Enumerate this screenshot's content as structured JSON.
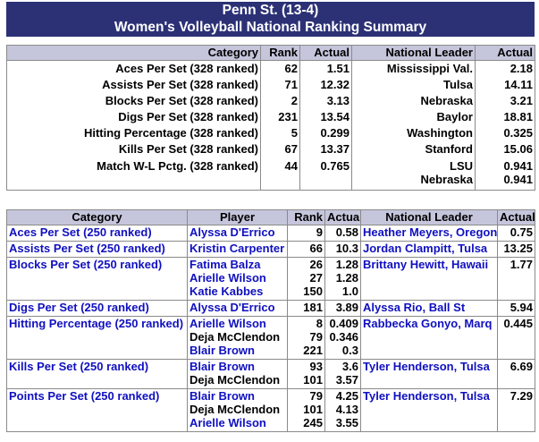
{
  "header": {
    "line1": "Penn St. (13-4)",
    "line2": "Women's Volleyball National Ranking Summary"
  },
  "team_table": {
    "columns": [
      "Category",
      "Rank",
      "Actual",
      "National Leader",
      "Actual"
    ],
    "rows": [
      {
        "category": "Aces Per Set (328 ranked)",
        "rank": "62",
        "actual": "1.51",
        "leaders": [
          "Mississippi Val."
        ],
        "leader_actuals": [
          "2.18"
        ]
      },
      {
        "category": "Assists Per Set (328 ranked)",
        "rank": "71",
        "actual": "12.32",
        "leaders": [
          "Tulsa"
        ],
        "leader_actuals": [
          "14.11"
        ]
      },
      {
        "category": "Blocks Per Set (328 ranked)",
        "rank": "2",
        "actual": "3.13",
        "leaders": [
          "Nebraska"
        ],
        "leader_actuals": [
          "3.21"
        ]
      },
      {
        "category": "Digs Per Set (328 ranked)",
        "rank": "231",
        "actual": "13.54",
        "leaders": [
          "Baylor"
        ],
        "leader_actuals": [
          "18.81"
        ]
      },
      {
        "category": "Hitting Percentage (328 ranked)",
        "rank": "5",
        "actual": "0.299",
        "leaders": [
          "Washington"
        ],
        "leader_actuals": [
          "0.325"
        ]
      },
      {
        "category": "Kills Per Set (328 ranked)",
        "rank": "67",
        "actual": "13.37",
        "leaders": [
          "Stanford"
        ],
        "leader_actuals": [
          "15.06"
        ]
      },
      {
        "category": "Match W-L Pctg. (328 ranked)",
        "rank": "44",
        "actual": "0.765",
        "leaders": [
          "LSU",
          "Nebraska"
        ],
        "leader_actuals": [
          "0.941",
          "0.941"
        ]
      }
    ]
  },
  "player_table": {
    "columns": [
      "Category",
      "Player",
      "Rank",
      "Actual",
      "National Leader",
      "Actual"
    ],
    "rows": [
      {
        "category": "Aces Per Set (250 ranked)",
        "players": [
          "Alyssa D'Errico"
        ],
        "player_colors": [
          "blue"
        ],
        "ranks": [
          "9"
        ],
        "actuals": [
          "0.58"
        ],
        "leader": "Heather Meyers, Oregon",
        "leader_actual": "0.75"
      },
      {
        "category": "Assists Per Set (250 ranked)",
        "players": [
          "Kristin Carpenter"
        ],
        "player_colors": [
          "blue"
        ],
        "ranks": [
          "66"
        ],
        "actuals": [
          "10.3"
        ],
        "leader": "Jordan Clampitt, Tulsa",
        "leader_actual": "13.25"
      },
      {
        "category": "Blocks Per Set (250 ranked)",
        "players": [
          "Fatima Balza",
          "Arielle Wilson",
          "Katie Kabbes"
        ],
        "player_colors": [
          "blue",
          "blue",
          "blue"
        ],
        "ranks": [
          "26",
          "27",
          "150"
        ],
        "actuals": [
          "1.28",
          "1.28",
          "1.0"
        ],
        "leader": "Brittany Hewitt, Hawaii",
        "leader_actual": "1.77"
      },
      {
        "category": "Digs Per Set (250 ranked)",
        "players": [
          "Alyssa D'Errico"
        ],
        "player_colors": [
          "blue"
        ],
        "ranks": [
          "181"
        ],
        "actuals": [
          "3.89"
        ],
        "leader": "Alyssa Rio, Ball St",
        "leader_actual": "5.94"
      },
      {
        "category": "Hitting Percentage  (250 ranked)",
        "players": [
          "Arielle Wilson",
          "Deja McClendon",
          "Blair Brown"
        ],
        "player_colors": [
          "blue",
          "black",
          "blue"
        ],
        "ranks": [
          "8",
          "79",
          "221"
        ],
        "actuals": [
          "0.409",
          "0.346",
          "0.3"
        ],
        "leader": "Rabbecka Gonyo, Marq",
        "leader_actual": "0.445"
      },
      {
        "category": "Kills Per Set (250 ranked)",
        "players": [
          "Blair Brown",
          "Deja McClendon"
        ],
        "player_colors": [
          "blue",
          "black"
        ],
        "ranks": [
          "93",
          "101"
        ],
        "actuals": [
          "3.6",
          "3.57"
        ],
        "leader": "Tyler Henderson,  Tulsa",
        "leader_actual": "6.69"
      },
      {
        "category": "Points Per Set (250 ranked)",
        "players": [
          "Blair Brown",
          "Deja McClendon",
          "Arielle Wilson"
        ],
        "player_colors": [
          "blue",
          "black",
          "blue"
        ],
        "ranks": [
          "79",
          "101",
          "245"
        ],
        "actuals": [
          "4.25",
          "4.13",
          "3.55"
        ],
        "leader": "Tyler Henderson,  Tulsa",
        "leader_actual": "7.29"
      }
    ]
  },
  "colors": {
    "header_bg": "#2c3176",
    "column_header_bg": "#c5c6dc",
    "link_blue": "#1010c0"
  }
}
